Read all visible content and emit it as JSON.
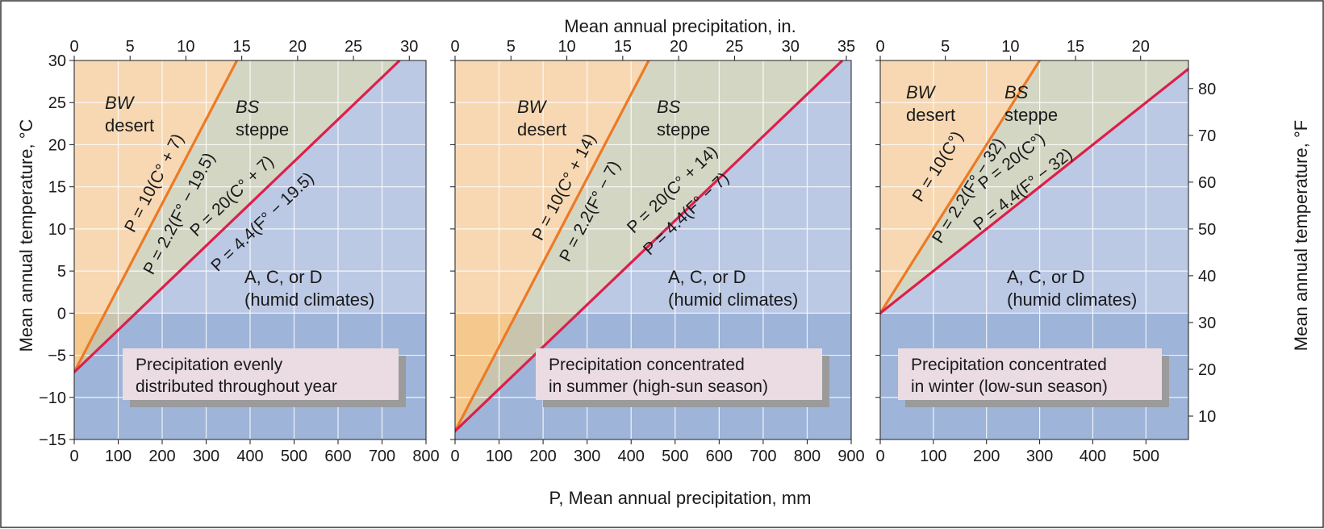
{
  "figure": {
    "top_axis_title": "Mean annual precipitation, in.",
    "bottom_axis_title": "P, Mean annual precipitation, mm",
    "left_axis_title": "Mean annual temperature, °C",
    "right_axis_title": "Mean annual temperature, °F",
    "colors": {
      "desert": "#f7d8b2",
      "desert_cold": "#f5c88e",
      "steppe": "#d4d6c4",
      "steppe_cold": "#c8c4ae",
      "humid": "#bcc9e5",
      "humid_cold": "#9eb4d8",
      "grid": "#ffffff",
      "desert_boundary": "#ec7a26",
      "steppe_boundary": "#dc1f4c",
      "caption_box": "#eadce2",
      "caption_shadow": "#9b9b9b",
      "frame": "#333333"
    }
  },
  "chart_data": [
    {
      "type": "line",
      "caption": [
        "Precipitation evenly",
        "distributed throughout year"
      ],
      "xlabel": "P, Mean annual precipitation, mm",
      "ylabel": "Mean annual temperature, °C",
      "xlim": [
        0,
        800
      ],
      "ylim": [
        -15,
        30
      ],
      "x_ticks": [
        0,
        100,
        200,
        300,
        400,
        500,
        600,
        700,
        800
      ],
      "y_ticks": [
        -15,
        -10,
        -5,
        0,
        5,
        10,
        15,
        20,
        25,
        30
      ],
      "top_ticks_in": [
        0,
        5,
        10,
        15,
        20,
        25,
        30
      ],
      "region_labels": {
        "desert": [
          "BW",
          "desert"
        ],
        "steppe": [
          "BS",
          "steppe"
        ],
        "humid": [
          "A, C, or D",
          "(humid climates)"
        ]
      },
      "series": [
        {
          "name": "P = 10(C° + 7)",
          "alt_name": "P = 2.2(F° − 19.5)",
          "boundary": "desert",
          "x": [
            0,
            370
          ],
          "y": [
            -7,
            30
          ]
        },
        {
          "name": "P = 20(C° + 7)",
          "alt_name": "P = 4.4(F° − 19.5)",
          "boundary": "steppe",
          "x": [
            0,
            740
          ],
          "y": [
            -7,
            30
          ]
        }
      ]
    },
    {
      "type": "line",
      "caption": [
        "Precipitation concentrated",
        "in summer (high-sun season)"
      ],
      "xlabel": "P, Mean annual precipitation, mm",
      "ylabel": "Mean annual temperature, °C",
      "xlim": [
        0,
        900
      ],
      "ylim": [
        -15,
        30
      ],
      "x_ticks": [
        0,
        100,
        200,
        300,
        400,
        500,
        600,
        700,
        800,
        900
      ],
      "y_ticks": [
        -15,
        -10,
        -5,
        0,
        5,
        10,
        15,
        20,
        25,
        30
      ],
      "top_ticks_in": [
        0,
        5,
        10,
        15,
        20,
        25,
        30,
        35
      ],
      "region_labels": {
        "desert": [
          "BW",
          "desert"
        ],
        "steppe": [
          "BS",
          "steppe"
        ],
        "humid": [
          "A, C, or D",
          "(humid climates)"
        ]
      },
      "series": [
        {
          "name": "P = 10(C° + 14)",
          "alt_name": "P = 2.2(F° − 7)",
          "boundary": "desert",
          "x": [
            0,
            440
          ],
          "y": [
            -14,
            30
          ]
        },
        {
          "name": "P = 20(C° + 14)",
          "alt_name": "P = 4.4(F° − 7)",
          "boundary": "steppe",
          "x": [
            0,
            880
          ],
          "y": [
            -14,
            30
          ]
        }
      ]
    },
    {
      "type": "line",
      "caption": [
        "Precipitation concentrated",
        "in winter (low-sun season)"
      ],
      "xlabel": "P, Mean annual precipitation, mm",
      "ylabel": "Mean annual temperature, °F",
      "xlim": [
        0,
        580
      ],
      "ylim": [
        -15,
        30
      ],
      "x_ticks": [
        0,
        100,
        200,
        300,
        400,
        500
      ],
      "y_ticks": [
        -15,
        -10,
        -5,
        0,
        5,
        10,
        15,
        20,
        25,
        30
      ],
      "right_ticks_f": [
        10,
        20,
        30,
        40,
        50,
        60,
        70,
        80
      ],
      "top_ticks_in": [
        0,
        5,
        10,
        15,
        20
      ],
      "region_labels": {
        "desert": [
          "BW",
          "desert"
        ],
        "steppe": [
          "BS",
          "steppe"
        ],
        "humid": [
          "A, C, or D",
          "(humid climates)"
        ]
      },
      "series": [
        {
          "name": "P = 10(C°)",
          "alt_name": "P = 2.2(F° − 32)",
          "boundary": "desert",
          "x": [
            0,
            300
          ],
          "y": [
            0,
            30
          ]
        },
        {
          "name": "P = 20(C°)",
          "alt_name": "P = 4.4(F° − 32)",
          "boundary": "steppe",
          "x": [
            0,
            600
          ],
          "y": [
            0,
            30
          ]
        }
      ]
    }
  ]
}
